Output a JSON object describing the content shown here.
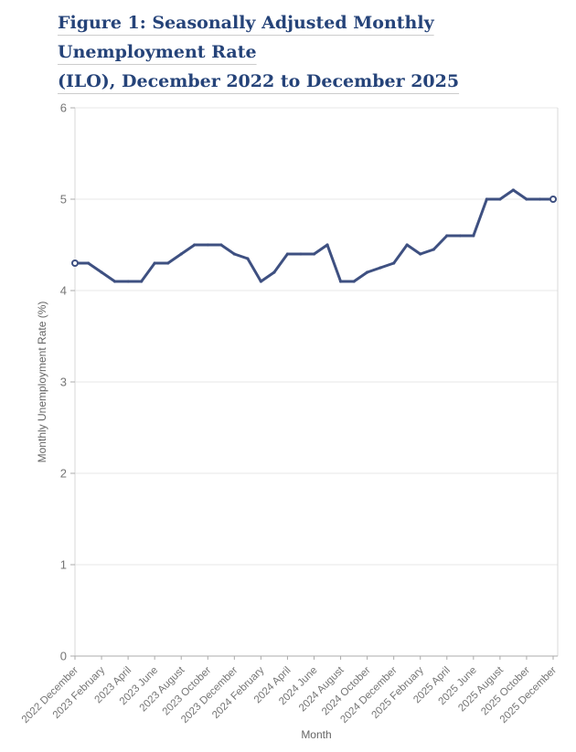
{
  "figure": {
    "title_lines": [
      "Figure 1: Seasonally Adjusted Monthly Unemployment Rate",
      "(ILO), December 2022 to December 2025"
    ]
  },
  "colors": {
    "title": "#254379",
    "line": "#3e5081",
    "grid": "#e7e7e7",
    "plot_border": "#d9d9d9",
    "axis": "#ababab",
    "tick_label": "#757575",
    "axis_title": "#666666",
    "marker_fill": "#ffffff"
  },
  "chart_data": {
    "type": "line",
    "title": "Figure 1: Seasonally Adjusted Monthly Unemployment Rate (ILO), December 2022 to December 2025",
    "xlabel": "Month",
    "ylabel": "Monthly Unemployment Rate (%)",
    "ylim": [
      0,
      6
    ],
    "yticks": [
      0,
      1,
      2,
      3,
      4,
      5,
      6
    ],
    "grid": "horizontal",
    "legend_position": "none",
    "x": [
      "2022 December",
      "2023 January",
      "2023 February",
      "2023 March",
      "2023 April",
      "2023 May",
      "2023 June",
      "2023 July",
      "2023 August",
      "2023 September",
      "2023 October",
      "2023 November",
      "2023 December",
      "2024 January",
      "2024 February",
      "2024 March",
      "2024 April",
      "2024 May",
      "2024 June",
      "2024 July",
      "2024 August",
      "2024 September",
      "2024 October",
      "2024 November",
      "2024 December",
      "2025 January",
      "2025 February",
      "2025 March",
      "2025 April",
      "2025 May",
      "2025 June",
      "2025 July",
      "2025 August",
      "2025 September",
      "2025 October",
      "2025 November",
      "2025 December"
    ],
    "values": [
      4.3,
      4.3,
      4.2,
      4.1,
      4.1,
      4.1,
      4.3,
      4.3,
      4.4,
      4.5,
      4.5,
      4.5,
      4.4,
      4.35,
      4.1,
      4.2,
      4.4,
      4.4,
      4.4,
      4.5,
      4.1,
      4.1,
      4.2,
      4.25,
      4.3,
      4.5,
      4.4,
      4.45,
      4.6,
      4.6,
      4.6,
      5.0,
      5.0,
      5.1,
      5.0,
      5.0,
      5.0
    ],
    "xtick_labels": [
      "2022 December",
      "2023 February",
      "2023 April",
      "2023 June",
      "2023 August",
      "2023 October",
      "2023 December",
      "2024 February",
      "2024 April",
      "2024 June",
      "2024 August",
      "2024 October",
      "2024 December",
      "2025 February",
      "2025 April",
      "2025 June",
      "2025 August",
      "2025 October",
      "2025 December"
    ]
  }
}
